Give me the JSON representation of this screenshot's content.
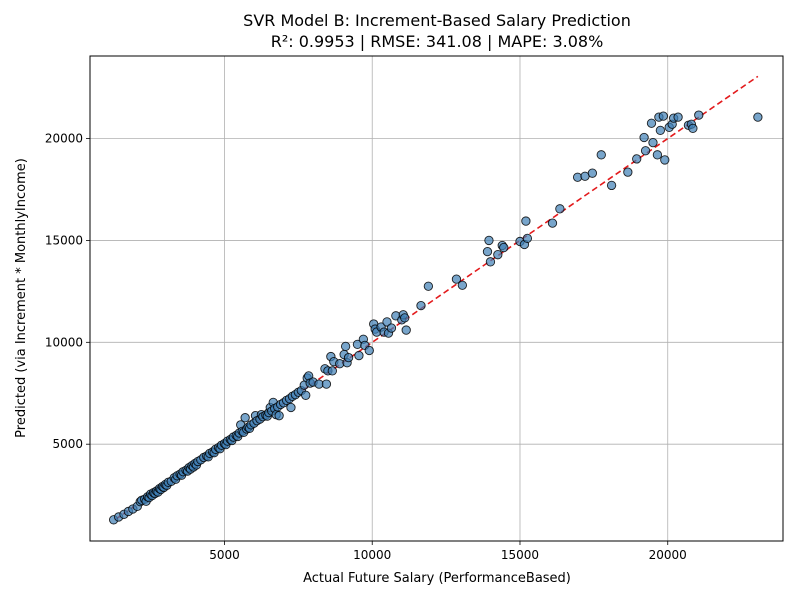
{
  "chart_data": {
    "type": "scatter",
    "title": "SVR Model B: Increment-Based Salary Prediction",
    "subtitle": "R²: 0.9953 | RMSE: 341.08 | MAPE: 3.08%",
    "xlabel": "Actual Future Salary (PerformanceBased)",
    "ylabel": "Predicted (via Increment * MonthlyIncome)",
    "xlim": [
      450,
      23900
    ],
    "ylim": [
      250,
      24050
    ],
    "xticks": [
      5000,
      10000,
      15000,
      20000
    ],
    "yticks": [
      5000,
      10000,
      15000,
      20000
    ],
    "xtick_labels": [
      "5000",
      "10000",
      "15000",
      "20000"
    ],
    "ytick_labels": [
      "5000",
      "10000",
      "15000",
      "20000"
    ],
    "grid": true,
    "legend": "none",
    "reference_line": {
      "x": [
        1300,
        23050
      ],
      "y": [
        1300,
        23050
      ],
      "style": "dashed",
      "color": "#e31a1c"
    },
    "point_color": "#3f7fb5",
    "point_edge_color": "#000000",
    "point_alpha": 0.7,
    "points": [
      [
        1250,
        1290
      ],
      [
        1420,
        1430
      ],
      [
        1600,
        1560
      ],
      [
        1750,
        1700
      ],
      [
        1900,
        1820
      ],
      [
        2050,
        1950
      ],
      [
        2150,
        2180
      ],
      [
        2200,
        2250
      ],
      [
        2300,
        2300
      ],
      [
        2350,
        2200
      ],
      [
        2400,
        2420
      ],
      [
        2450,
        2380
      ],
      [
        2500,
        2550
      ],
      [
        2550,
        2480
      ],
      [
        2600,
        2620
      ],
      [
        2650,
        2580
      ],
      [
        2700,
        2700
      ],
      [
        2750,
        2650
      ],
      [
        2800,
        2820
      ],
      [
        2850,
        2780
      ],
      [
        2900,
        2920
      ],
      [
        2950,
        2880
      ],
      [
        3000,
        3020
      ],
      [
        3050,
        2980
      ],
      [
        3100,
        3130
      ],
      [
        3200,
        3180
      ],
      [
        3300,
        3350
      ],
      [
        3350,
        3280
      ],
      [
        3400,
        3450
      ],
      [
        3500,
        3530
      ],
      [
        3550,
        3480
      ],
      [
        3600,
        3650
      ],
      [
        3700,
        3720
      ],
      [
        3750,
        3680
      ],
      [
        3800,
        3850
      ],
      [
        3850,
        3780
      ],
      [
        3900,
        3950
      ],
      [
        3950,
        3880
      ],
      [
        4000,
        4050
      ],
      [
        4050,
        3980
      ],
      [
        4100,
        4150
      ],
      [
        4200,
        4230
      ],
      [
        4300,
        4350
      ],
      [
        4400,
        4420
      ],
      [
        4450,
        4380
      ],
      [
        4500,
        4550
      ],
      [
        4600,
        4620
      ],
      [
        4650,
        4580
      ],
      [
        4700,
        4750
      ],
      [
        4800,
        4830
      ],
      [
        4850,
        4780
      ],
      [
        4900,
        4950
      ],
      [
        5000,
        5030
      ],
      [
        5050,
        4980
      ],
      [
        5100,
        5150
      ],
      [
        5200,
        5230
      ],
      [
        5250,
        5180
      ],
      [
        5300,
        5350
      ],
      [
        5400,
        5430
      ],
      [
        5450,
        5380
      ],
      [
        5500,
        5550
      ],
      [
        5550,
        5950
      ],
      [
        5600,
        5630
      ],
      [
        5650,
        5580
      ],
      [
        5700,
        6300
      ],
      [
        5750,
        5750
      ],
      [
        5800,
        5830
      ],
      [
        5850,
        5780
      ],
      [
        5900,
        5950
      ],
      [
        6000,
        6030
      ],
      [
        6050,
        6400
      ],
      [
        6100,
        6150
      ],
      [
        6200,
        6230
      ],
      [
        6250,
        6450
      ],
      [
        6300,
        6350
      ],
      [
        6400,
        6430
      ],
      [
        6450,
        6380
      ],
      [
        6500,
        6550
      ],
      [
        6550,
        6800
      ],
      [
        6600,
        6630
      ],
      [
        6650,
        7050
      ],
      [
        6700,
        6750
      ],
      [
        6750,
        6450
      ],
      [
        6800,
        6830
      ],
      [
        6850,
        6400
      ],
      [
        6900,
        6950
      ],
      [
        7000,
        7030
      ],
      [
        7100,
        7150
      ],
      [
        7200,
        7230
      ],
      [
        7250,
        6800
      ],
      [
        7300,
        7350
      ],
      [
        7400,
        7430
      ],
      [
        7500,
        7550
      ],
      [
        7600,
        7630
      ],
      [
        7700,
        7900
      ],
      [
        7750,
        7400
      ],
      [
        7800,
        8250
      ],
      [
        7850,
        8350
      ],
      [
        7900,
        8000
      ],
      [
        8000,
        8050
      ],
      [
        8200,
        7950
      ],
      [
        8400,
        8700
      ],
      [
        8450,
        7950
      ],
      [
        8500,
        8600
      ],
      [
        8600,
        9300
      ],
      [
        8650,
        8600
      ],
      [
        8700,
        9050
      ],
      [
        8900,
        8950
      ],
      [
        9050,
        9400
      ],
      [
        9100,
        9800
      ],
      [
        9150,
        9000
      ],
      [
        9200,
        9250
      ],
      [
        9500,
        9900
      ],
      [
        9550,
        9350
      ],
      [
        9700,
        10150
      ],
      [
        9750,
        9850
      ],
      [
        9900,
        9600
      ],
      [
        10050,
        10900
      ],
      [
        10100,
        10650
      ],
      [
        10150,
        10500
      ],
      [
        10300,
        10750
      ],
      [
        10400,
        10500
      ],
      [
        10500,
        11000
      ],
      [
        10550,
        10450
      ],
      [
        10650,
        10700
      ],
      [
        10800,
        11300
      ],
      [
        11000,
        11100
      ],
      [
        11050,
        11350
      ],
      [
        11100,
        11200
      ],
      [
        11150,
        10600
      ],
      [
        11650,
        11800
      ],
      [
        11900,
        12750
      ],
      [
        12850,
        13100
      ],
      [
        13050,
        12800
      ],
      [
        13900,
        14450
      ],
      [
        13950,
        15000
      ],
      [
        14000,
        13950
      ],
      [
        14250,
        14300
      ],
      [
        14400,
        14750
      ],
      [
        14450,
        14650
      ],
      [
        15000,
        14950
      ],
      [
        15150,
        14800
      ],
      [
        15200,
        15950
      ],
      [
        15250,
        15100
      ],
      [
        16100,
        15850
      ],
      [
        16350,
        16550
      ],
      [
        16950,
        18100
      ],
      [
        17200,
        18150
      ],
      [
        17450,
        18300
      ],
      [
        17750,
        19200
      ],
      [
        18100,
        17700
      ],
      [
        18650,
        18350
      ],
      [
        18950,
        19000
      ],
      [
        19200,
        20050
      ],
      [
        19250,
        19400
      ],
      [
        19450,
        20750
      ],
      [
        19500,
        19800
      ],
      [
        19650,
        19200
      ],
      [
        19700,
        21050
      ],
      [
        19750,
        20400
      ],
      [
        19850,
        21100
      ],
      [
        19900,
        18950
      ],
      [
        20050,
        20550
      ],
      [
        20150,
        20700
      ],
      [
        20200,
        21000
      ],
      [
        20350,
        21050
      ],
      [
        20700,
        20650
      ],
      [
        20800,
        20700
      ],
      [
        20850,
        20500
      ],
      [
        21050,
        21150
      ],
      [
        23050,
        21050
      ]
    ]
  }
}
